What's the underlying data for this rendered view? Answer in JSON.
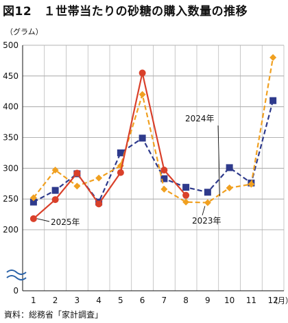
{
  "figure": {
    "title": "図12　１世帯当たりの砂糖の購入数量の推移",
    "source": "資料：総務省「家計調査」"
  },
  "chart_data": {
    "type": "line",
    "title": "図12　１世帯当たりの砂糖の購入数量の推移",
    "ylabel": "（グラム）",
    "xunit": "（月）",
    "ylim": [
      200,
      500
    ],
    "y_axis_break": true,
    "y_bottom_label": "0",
    "yticks": [
      200,
      250,
      300,
      350,
      400,
      450,
      500
    ],
    "x": [
      1,
      2,
      3,
      4,
      5,
      6,
      7,
      8,
      9,
      10,
      11,
      12
    ],
    "grid": true,
    "series": [
      {
        "name": "2024年",
        "color": "#2e3a8c",
        "style": "dashed",
        "marker": "square",
        "values": [
          245,
          264,
          291,
          245,
          325,
          349,
          283,
          269,
          261,
          301,
          276,
          410
        ]
      },
      {
        "name": "2023年",
        "color": "#f0a020",
        "style": "dashed",
        "marker": "diamond",
        "values": [
          252,
          297,
          271,
          284,
          304,
          420,
          266,
          245,
          244,
          268,
          274,
          480
        ]
      },
      {
        "name": "2025年",
        "color": "#d9402a",
        "style": "solid",
        "marker": "circle",
        "values": [
          218,
          249,
          292,
          242,
          293,
          455,
          297,
          256,
          null,
          null,
          null,
          null
        ]
      }
    ]
  }
}
